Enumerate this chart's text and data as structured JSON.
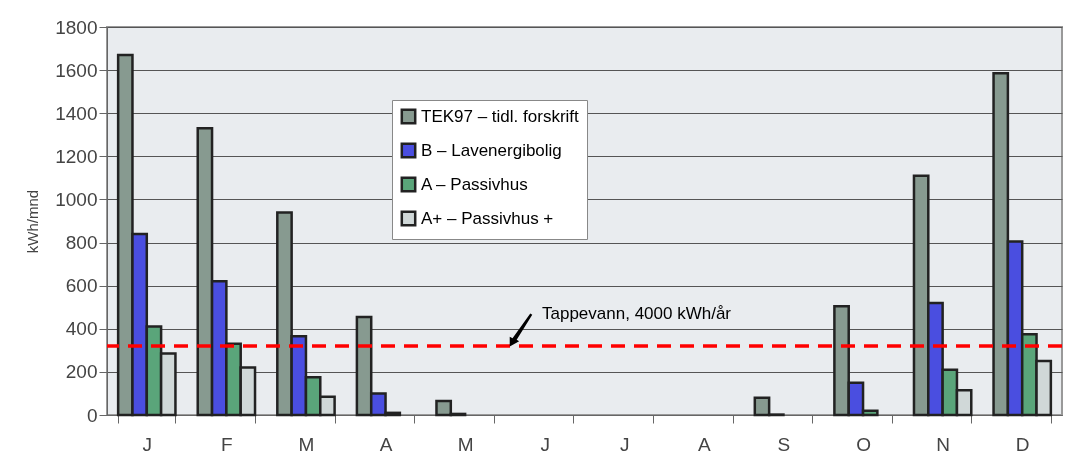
{
  "chart_data": {
    "type": "bar",
    "ylabel": "kWh/mnd",
    "categories": [
      "J",
      "F",
      "M",
      "A",
      "M",
      "J",
      "J",
      "A",
      "S",
      "O",
      "N",
      "D"
    ],
    "series": [
      {
        "name": "TEK97 – tidl. forskrift",
        "color": "#879a90",
        "values": [
          1670,
          1330,
          940,
          455,
          65,
          0,
          0,
          0,
          80,
          505,
          1110,
          1585
        ]
      },
      {
        "name": "B – Lavenergibolig",
        "color": "#4a4ee0",
        "values": [
          840,
          620,
          365,
          100,
          5,
          0,
          0,
          0,
          2,
          150,
          520,
          805
        ]
      },
      {
        "name": "A – Passivhus",
        "color": "#5aa57a",
        "values": [
          410,
          330,
          175,
          10,
          0,
          0,
          0,
          0,
          0,
          20,
          210,
          375
        ]
      },
      {
        "name": "A+ – Passivhus +",
        "color": "#d0d8d8",
        "values": [
          285,
          220,
          85,
          0,
          0,
          0,
          0,
          0,
          0,
          0,
          115,
          250
        ]
      }
    ],
    "ylim": [
      0,
      1800
    ],
    "yticks": [
      0,
      200,
      400,
      600,
      800,
      1000,
      1200,
      1400,
      1600,
      1800
    ],
    "grid": "y",
    "legend": "top",
    "ref_lines": [
      {
        "axis": "y",
        "value": 320,
        "label": "Tappevann, 4000 kWh/år",
        "color": "#ff0000",
        "line_style": "dashed"
      }
    ]
  }
}
